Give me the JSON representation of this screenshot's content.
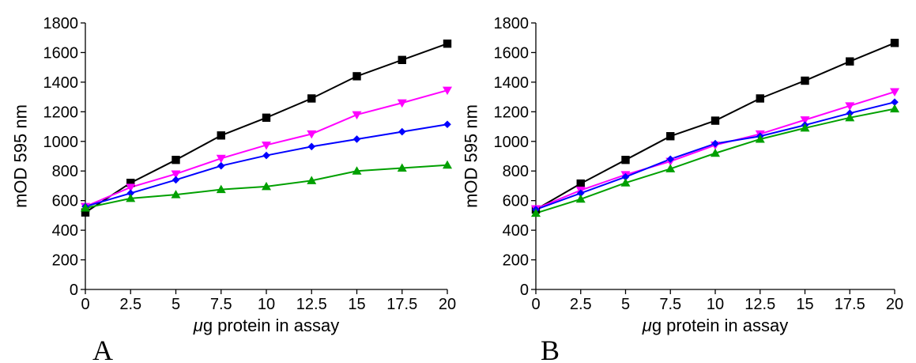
{
  "chart_data": [
    {
      "type": "line",
      "panel_label": "A",
      "xlabel_mu": "μ",
      "xlabel_rest": "g protein in assay",
      "ylabel": "mOD 595 nm",
      "xlim": [
        0,
        20
      ],
      "ylim": [
        0,
        1800
      ],
      "x_ticks": [
        "0",
        "2.5",
        "5",
        "7.5",
        "10",
        "12.5",
        "15",
        "17.5",
        "20"
      ],
      "y_ticks": [
        "0",
        "200",
        "400",
        "600",
        "800",
        "1000",
        "1200",
        "1400",
        "1600",
        "1800"
      ],
      "grid": false,
      "x": [
        0,
        2.5,
        5,
        7.5,
        10,
        12.5,
        15,
        17.5,
        20
      ],
      "series": [
        {
          "color": "#000000",
          "marker": "square",
          "values": [
            520,
            720,
            875,
            1040,
            1160,
            1290,
            1440,
            1550,
            1660
          ]
        },
        {
          "color": "#ff00ff",
          "marker": "triangle-down",
          "values": [
            560,
            690,
            780,
            885,
            975,
            1050,
            1180,
            1260,
            1345
          ]
        },
        {
          "color": "#0000ff",
          "marker": "diamond",
          "values": [
            560,
            650,
            740,
            835,
            905,
            965,
            1015,
            1065,
            1115
          ]
        },
        {
          "color": "#00a000",
          "marker": "triangle-up",
          "values": [
            550,
            615,
            640,
            675,
            695,
            735,
            800,
            820,
            840
          ]
        }
      ]
    },
    {
      "type": "line",
      "panel_label": "B",
      "xlabel_mu": "μ",
      "xlabel_rest": "g protein in assay",
      "ylabel": "mOD 595 nm",
      "xlim": [
        0,
        20
      ],
      "ylim": [
        0,
        1800
      ],
      "x_ticks": [
        "0",
        "2.5",
        "5",
        "7.5",
        "10",
        "12.5",
        "15",
        "17.5",
        "20"
      ],
      "y_ticks": [
        "0",
        "200",
        "400",
        "600",
        "800",
        "1000",
        "1200",
        "1400",
        "1600",
        "1800"
      ],
      "grid": false,
      "x": [
        0,
        2.5,
        5,
        7.5,
        10,
        12.5,
        15,
        17.5,
        20
      ],
      "series": [
        {
          "color": "#000000",
          "marker": "square",
          "values": [
            540,
            715,
            875,
            1035,
            1140,
            1290,
            1410,
            1540,
            1665
          ]
        },
        {
          "color": "#ff00ff",
          "marker": "triangle-down",
          "values": [
            545,
            670,
            775,
            865,
            975,
            1050,
            1145,
            1240,
            1335
          ]
        },
        {
          "color": "#0000ff",
          "marker": "diamond",
          "values": [
            540,
            650,
            760,
            880,
            985,
            1035,
            1110,
            1190,
            1265
          ]
        },
        {
          "color": "#00a000",
          "marker": "triangle-up",
          "values": [
            515,
            610,
            720,
            815,
            920,
            1015,
            1090,
            1160,
            1220
          ]
        }
      ]
    }
  ]
}
